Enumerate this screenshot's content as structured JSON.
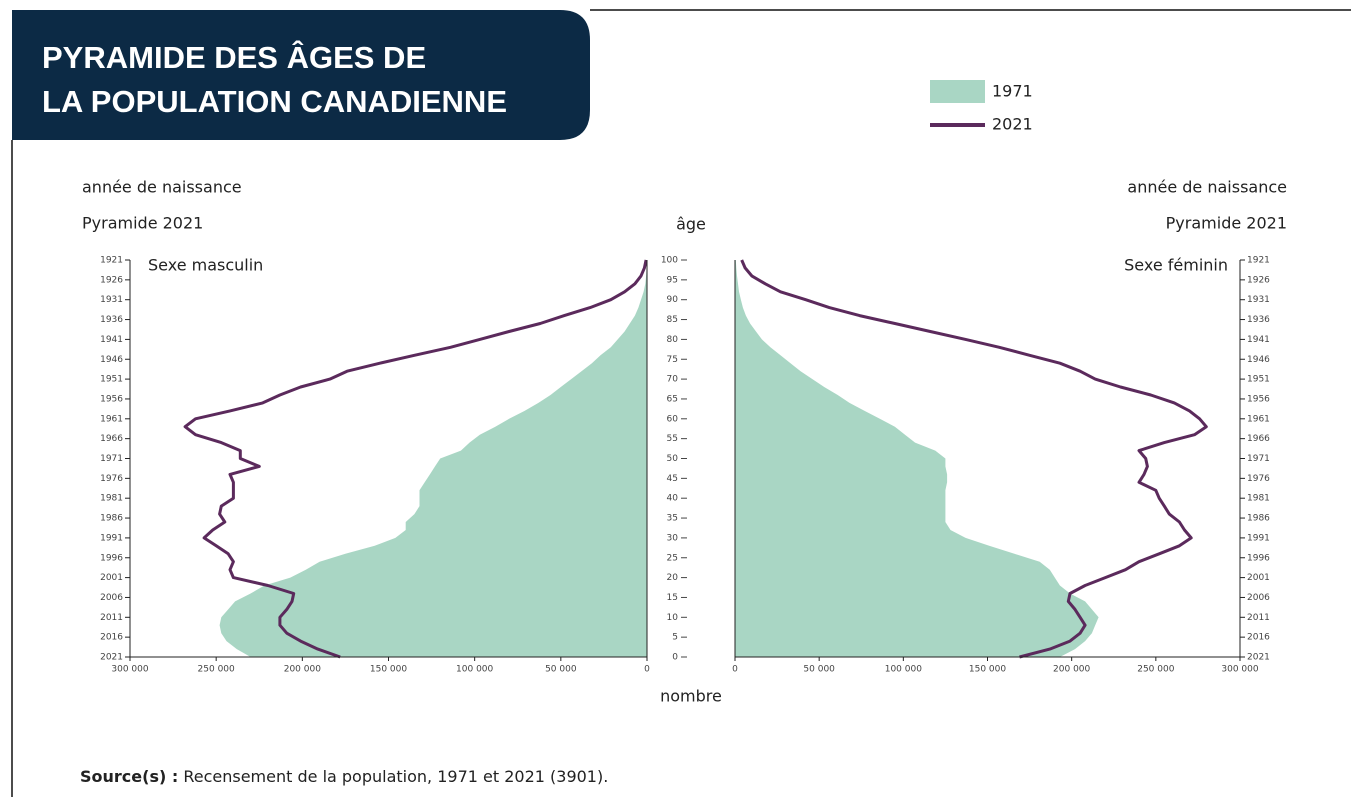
{
  "chart_data": {
    "type": "pyramid",
    "title": [
      "PYRAMIDE DES ÂGES DE",
      "LA POPULATION CANADIENNE"
    ],
    "y_label": "âge",
    "x_label": "nombre",
    "series": [
      {
        "name": "1971",
        "color": "#a9d6c4",
        "style": "area"
      },
      {
        "name": "2021",
        "color": "#5b2a5c",
        "style": "line"
      }
    ],
    "y": [
      0,
      2,
      4,
      6,
      8,
      10,
      12,
      14,
      16,
      18,
      20,
      22,
      24,
      26,
      28,
      30,
      32,
      34,
      36,
      38,
      40,
      42,
      44,
      46,
      48,
      50,
      52,
      54,
      56,
      58,
      60,
      62,
      64,
      66,
      68,
      70,
      72,
      74,
      76,
      78,
      80,
      82,
      84,
      86,
      88,
      90,
      92,
      94,
      96,
      98,
      100
    ],
    "ylim": [
      0,
      100
    ],
    "yticks": [
      0,
      5,
      10,
      15,
      20,
      25,
      30,
      35,
      40,
      45,
      50,
      55,
      60,
      65,
      70,
      75,
      80,
      85,
      90,
      95,
      100
    ],
    "y2lim": [
      2021,
      1921
    ],
    "y2ticks": [
      1921,
      1926,
      1931,
      1936,
      1941,
      1946,
      1951,
      1956,
      1961,
      1966,
      1971,
      1976,
      1981,
      1986,
      1991,
      1996,
      2001,
      2006,
      2011,
      2016,
      2021
    ],
    "xlim": [
      0,
      300000
    ],
    "panels": [
      {
        "side": "left",
        "label": "Sexe masculin",
        "axis_title": "année de naissance",
        "axis_subtitle": "Pyramide 2021",
        "xticks": [
          {
            "value": 300000,
            "label": "300 000"
          },
          {
            "value": 250000,
            "label": "250 000"
          },
          {
            "value": 200000,
            "label": "200 000"
          },
          {
            "value": 150000,
            "label": "150 000"
          },
          {
            "value": 100000,
            "label": "100 000"
          },
          {
            "value": 50000,
            "label": "50 000"
          },
          0
        ],
        "series": [
          {
            "values": [
              230000,
              238000,
              244000,
              247000,
              248000,
              247000,
              243000,
              239000,
              230000,
              222000,
              207000,
              198000,
              190000,
              175000,
              158000,
              146000,
              140000,
              140000,
              135000,
              132000,
              132000,
              132000,
              129000,
              126000,
              123000,
              120000,
              108000,
              103000,
              97000,
              88000,
              80000,
              71000,
              63000,
              56000,
              50000,
              44000,
              38000,
              32000,
              27000,
              21000,
              17000,
              13000,
              10000,
              7000,
              5000,
              3500,
              2000,
              1000,
              500,
              200,
              100
            ]
          },
          {
            "values": [
              178000,
              191000,
              201000,
              209000,
              213000,
              213000,
              209000,
              206000,
              205000,
              220000,
              240000,
              242000,
              240000,
              243000,
              250000,
              257000,
              252000,
              245000,
              248000,
              247000,
              240000,
              240000,
              240000,
              242000,
              225000,
              236000,
              236000,
              247000,
              262000,
              268000,
              262000,
              242000,
              223000,
              213000,
              201000,
              184000,
              174000,
              155000,
              135000,
              114000,
              97000,
              80000,
              62000,
              48000,
              33000,
              21000,
              13000,
              7000,
              3500,
              1500,
              500
            ]
          }
        ]
      },
      {
        "side": "right",
        "label": "Sexe féminin",
        "axis_title": "année de naissance",
        "axis_subtitle": "Pyramide 2021",
        "xticks": [
          0,
          {
            "value": 50000,
            "label": "50 000"
          },
          {
            "value": 100000,
            "label": "100 000"
          },
          {
            "value": 150000,
            "label": "150 000"
          },
          {
            "value": 200000,
            "label": "200 000"
          },
          {
            "value": 250000,
            "label": "250 000"
          },
          {
            "value": 300000,
            "label": "300 000"
          }
        ],
        "series": [
          {
            "values": [
              193000,
              202000,
              208000,
              212000,
              214000,
              216000,
              212000,
              208000,
              199000,
              193000,
              190000,
              187000,
              181000,
              166000,
              151000,
              137000,
              128000,
              125000,
              125000,
              125000,
              125000,
              125000,
              126000,
              126000,
              125000,
              125000,
              119000,
              107000,
              101000,
              95000,
              86000,
              77000,
              68000,
              61000,
              53000,
              46000,
              39000,
              33000,
              27000,
              21000,
              16000,
              12500,
              9000,
              6500,
              4700,
              3500,
              2400,
              1800,
              1200,
              800,
              500
            ]
          },
          {
            "values": [
              169000,
              187000,
              199000,
              205000,
              208000,
              205000,
              202000,
              198000,
              199000,
              208000,
              220000,
              232000,
              240000,
              252000,
              264000,
              271000,
              267000,
              264000,
              258000,
              255000,
              252000,
              250000,
              240000,
              243000,
              245000,
              244000,
              240000,
              255000,
              273000,
              280000,
              276000,
              270000,
              261000,
              247000,
              229000,
              214000,
              205000,
              193000,
              175000,
              157000,
              137000,
              116000,
              95000,
              74000,
              56000,
              42000,
              27000,
              18000,
              10000,
              6000,
              4000
            ]
          }
        ]
      }
    ],
    "source": {
      "label": "Source(s) :",
      "text": "Recensement de la population, 1971 et 2021 (3901)."
    }
  }
}
